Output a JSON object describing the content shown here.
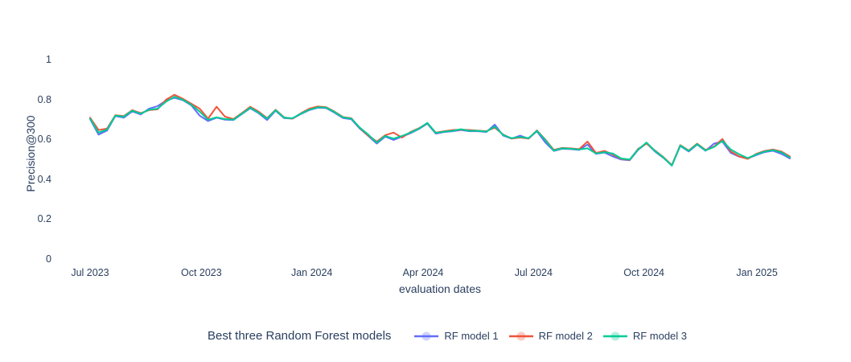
{
  "colors": {
    "background": "#ffffff",
    "text": "#2a3f5f"
  },
  "chart_data": {
    "type": "line",
    "title": "",
    "xlabel": "evaluation dates",
    "ylabel": "Precision@300",
    "legend_title": "Best three Random Forest models",
    "legend_position": "bottom-center",
    "grid": false,
    "x_axis": {
      "tick_labels": [
        "Jul 2023",
        "Oct 2023",
        "Jan 2024",
        "Apr 2024",
        "Jul 2024",
        "Oct 2024",
        "Jan 2025"
      ],
      "tick_indices": [
        0,
        13.2,
        26.3,
        39.5,
        52.6,
        65.7,
        79.1
      ],
      "n_points": 84
    },
    "y_axis": {
      "tick_labels": [
        "0",
        "0.2",
        "0.4",
        "0.6",
        "0.8",
        "1"
      ],
      "tick_values": [
        0,
        0.2,
        0.4,
        0.6,
        0.8,
        1
      ],
      "range": [
        0,
        1
      ]
    },
    "series": [
      {
        "name": "RF model 1",
        "color": "#636efa",
        "values": [
          0.703,
          0.625,
          0.645,
          0.718,
          0.71,
          0.742,
          0.726,
          0.755,
          0.768,
          0.795,
          0.81,
          0.798,
          0.772,
          0.72,
          0.693,
          0.71,
          0.7,
          0.698,
          0.728,
          0.757,
          0.732,
          0.698,
          0.745,
          0.708,
          0.705,
          0.728,
          0.748,
          0.76,
          0.758,
          0.735,
          0.708,
          0.702,
          0.655,
          0.618,
          0.58,
          0.615,
          0.598,
          0.615,
          0.632,
          0.653,
          0.68,
          0.63,
          0.638,
          0.642,
          0.648,
          0.642,
          0.642,
          0.638,
          0.675,
          0.62,
          0.605,
          0.62,
          0.605,
          0.642,
          0.585,
          0.543,
          0.554,
          0.552,
          0.548,
          0.575,
          0.528,
          0.535,
          0.515,
          0.5,
          0.496,
          0.548,
          0.582,
          0.54,
          0.508,
          0.47,
          0.568,
          0.54,
          0.575,
          0.544,
          0.58,
          0.59,
          0.533,
          0.514,
          0.505,
          0.522,
          0.537,
          0.544,
          0.528,
          0.505
        ]
      },
      {
        "name": "RF model 2",
        "color": "#ef553b",
        "values": [
          0.71,
          0.648,
          0.655,
          0.722,
          0.718,
          0.748,
          0.733,
          0.748,
          0.752,
          0.8,
          0.825,
          0.805,
          0.78,
          0.755,
          0.705,
          0.765,
          0.715,
          0.703,
          0.733,
          0.765,
          0.74,
          0.708,
          0.75,
          0.712,
          0.705,
          0.732,
          0.755,
          0.766,
          0.763,
          0.74,
          0.713,
          0.707,
          0.658,
          0.62,
          0.59,
          0.622,
          0.635,
          0.61,
          0.638,
          0.657,
          0.682,
          0.635,
          0.642,
          0.648,
          0.65,
          0.648,
          0.645,
          0.642,
          0.66,
          0.625,
          0.605,
          0.61,
          0.605,
          0.646,
          0.6,
          0.548,
          0.558,
          0.556,
          0.552,
          0.59,
          0.533,
          0.543,
          0.525,
          0.503,
          0.498,
          0.553,
          0.58,
          0.545,
          0.512,
          0.472,
          0.572,
          0.545,
          0.58,
          0.548,
          0.565,
          0.603,
          0.54,
          0.515,
          0.503,
          0.528,
          0.543,
          0.55,
          0.54,
          0.515
        ]
      },
      {
        "name": "RF model 3",
        "color": "#00cc96",
        "values": [
          0.705,
          0.635,
          0.65,
          0.72,
          0.715,
          0.745,
          0.73,
          0.75,
          0.755,
          0.79,
          0.815,
          0.8,
          0.775,
          0.74,
          0.7,
          0.712,
          0.703,
          0.7,
          0.73,
          0.76,
          0.735,
          0.705,
          0.748,
          0.71,
          0.707,
          0.73,
          0.75,
          0.762,
          0.76,
          0.738,
          0.711,
          0.705,
          0.66,
          0.625,
          0.585,
          0.618,
          0.605,
          0.618,
          0.635,
          0.655,
          0.684,
          0.633,
          0.64,
          0.644,
          0.652,
          0.644,
          0.644,
          0.64,
          0.665,
          0.623,
          0.607,
          0.613,
          0.607,
          0.644,
          0.597,
          0.545,
          0.556,
          0.554,
          0.55,
          0.556,
          0.53,
          0.537,
          0.53,
          0.505,
          0.5,
          0.55,
          0.585,
          0.543,
          0.51,
          0.469,
          0.57,
          0.543,
          0.577,
          0.546,
          0.563,
          0.594,
          0.55,
          0.526,
          0.507,
          0.525,
          0.54,
          0.547,
          0.536,
          0.51
        ]
      }
    ]
  }
}
